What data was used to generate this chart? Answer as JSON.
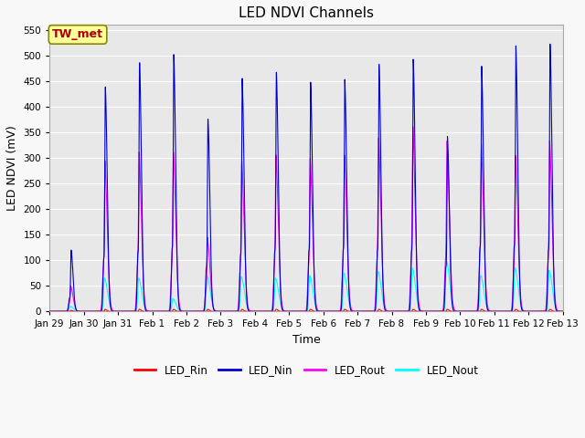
{
  "title": "LED NDVI Channels",
  "xlabel": "Time",
  "ylabel": "LED NDVI (mV)",
  "ylim": [
    0,
    560
  ],
  "yticks": [
    0,
    50,
    100,
    150,
    200,
    250,
    300,
    350,
    400,
    450,
    500,
    550
  ],
  "colors": {
    "LED_Rin": "#ff0000",
    "LED_Nin": "#0000cd",
    "LED_Rout": "#ff00ff",
    "LED_Nout": "#00ffff"
  },
  "annotation_text": "TW_met",
  "annotation_color": "#aa0000",
  "annotation_bg": "#ffff99",
  "annotation_edge": "#888800",
  "plot_bg": "#e8e8e8",
  "fig_bg": "#f8f8f8",
  "grid_color": "#ffffff",
  "tick_labels": [
    "Jan 29",
    "Jan 30",
    "Jan 31",
    "Feb 1",
    "Feb 2",
    "Feb 3",
    "Feb 4",
    "Feb 5",
    "Feb 6",
    "Feb 7",
    "Feb 8",
    "Feb 9",
    "Feb 10",
    "Feb 11",
    "Feb 12",
    "Feb 13"
  ],
  "nin_peaks": [
    115,
    420,
    465,
    480,
    360,
    435,
    445,
    425,
    430,
    460,
    470,
    325,
    455,
    495,
    500
  ],
  "nin_peaks2": [
    85,
    330,
    375,
    400,
    280,
    355,
    385,
    390,
    395,
    390,
    385,
    285,
    410,
    415,
    390
  ],
  "rout_peaks": [
    45,
    265,
    280,
    280,
    130,
    265,
    275,
    270,
    275,
    305,
    325,
    300,
    295,
    275,
    300
  ],
  "nout_peaks": [
    10,
    65,
    65,
    25,
    70,
    68,
    65,
    70,
    75,
    78,
    85,
    98,
    70,
    85,
    80
  ],
  "rin_peaks": [
    2,
    4,
    4,
    4,
    4,
    4,
    4,
    4,
    4,
    4,
    4,
    4,
    4,
    4,
    4
  ],
  "n_days": 15,
  "n_points": 6000
}
